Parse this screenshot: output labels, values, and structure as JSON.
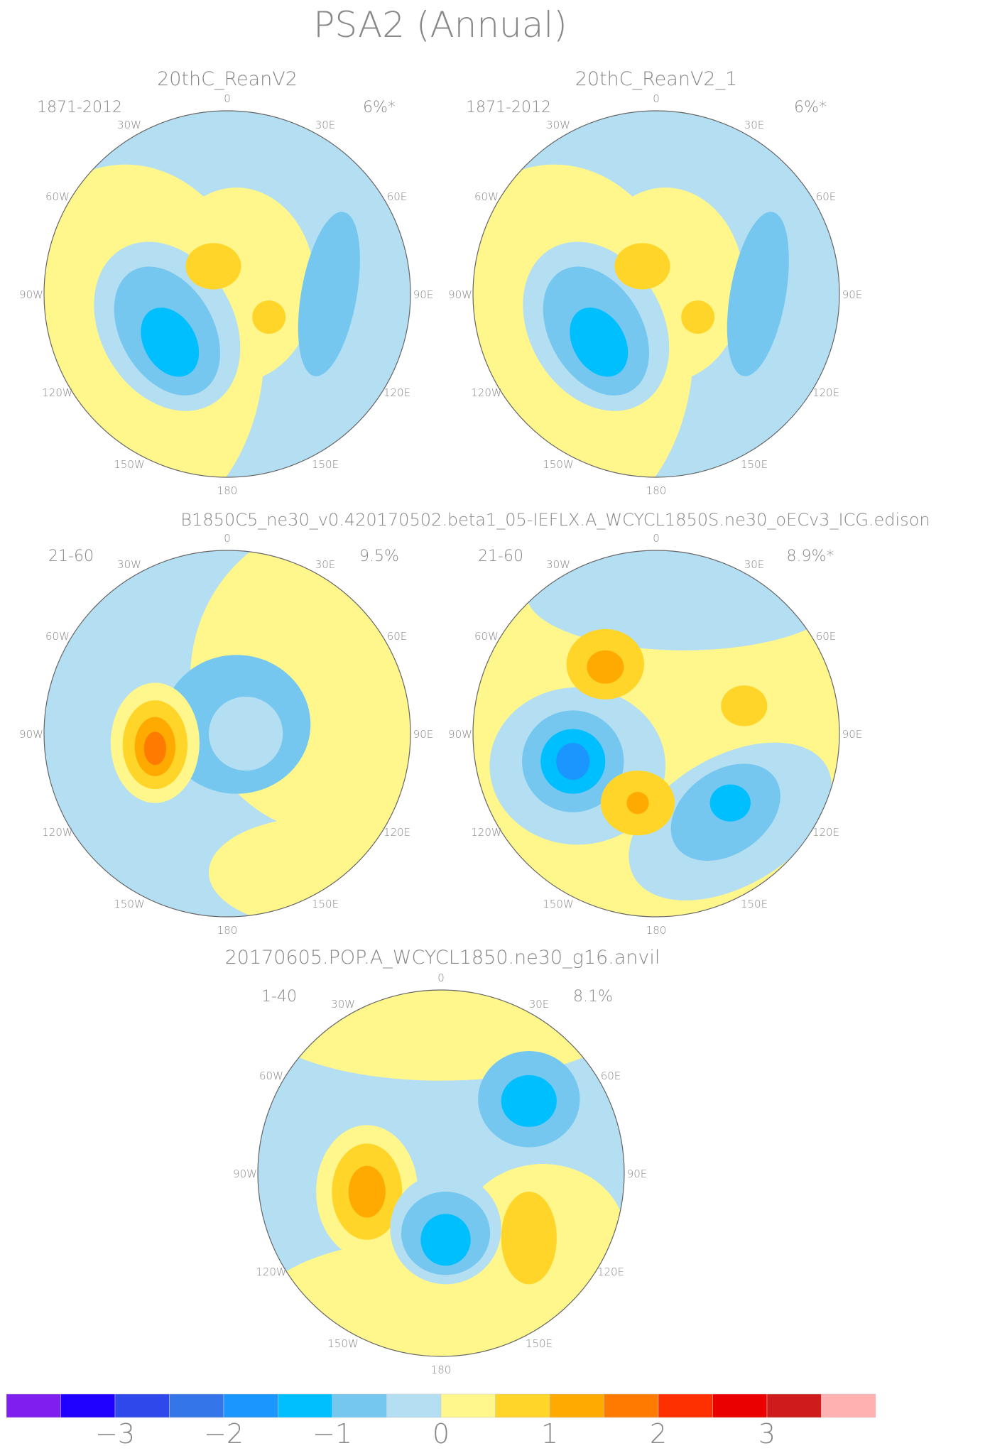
{
  "chart_data": {
    "type": "heatmap",
    "title": "PSA2 (Annual)",
    "projection": "south-polar stereographic",
    "longitude_labels": [
      "0",
      "30E",
      "60E",
      "90E",
      "120E",
      "150E",
      "180",
      "150W",
      "120W",
      "90W",
      "60W",
      "30W"
    ],
    "panels": [
      {
        "title": "20thC_ReanV2",
        "period": "1871-2012",
        "variance": "6%*"
      },
      {
        "title": "20thC_ReanV2_1",
        "period": "1871-2012",
        "variance": "6%*"
      },
      {
        "title": "",
        "period": "21-60",
        "variance": "9.5%"
      },
      {
        "title": "",
        "period": "21-60",
        "variance": "8.9%*"
      },
      {
        "title": "20170605.POP.A_WCYCL1850.ne30_g16.anvil",
        "period": "1-40",
        "variance": "8.1%"
      }
    ],
    "row2_title": "B1850C5_ne30_v0.420170502.beta1_05-IEFLX.A_WCYCL1850S.ne30_oECv3_ICG.edison",
    "colorbar": {
      "colors": [
        "#7f1fef",
        "#1f00ff",
        "#2f48eb",
        "#3575ea",
        "#1b96ff",
        "#00bfff",
        "#75c7f0",
        "#b4def2",
        "#fff68c",
        "#ffd52a",
        "#ffaa00",
        "#ff7b00",
        "#ff3000",
        "#eb0000",
        "#cf1b1b",
        "#ffb1b1"
      ],
      "tick_labels": [
        "−3",
        "−2",
        "−1",
        "0",
        "1",
        "2",
        "3"
      ]
    }
  }
}
